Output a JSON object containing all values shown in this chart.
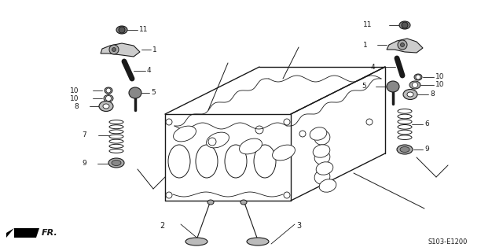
{
  "bg_color": "#ffffff",
  "lc": "#1a1a1a",
  "diagram_code": "S103-E1200",
  "figsize": [
    6.4,
    3.19
  ],
  "dpi": 100
}
